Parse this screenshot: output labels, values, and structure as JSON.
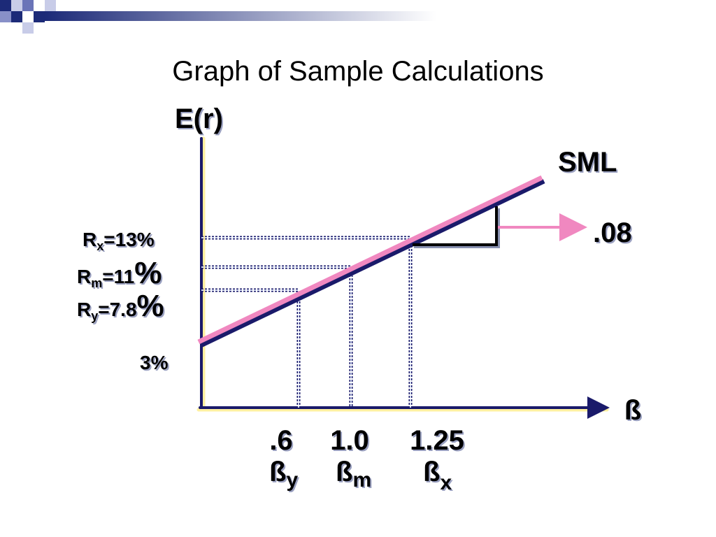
{
  "title": "Graph of Sample Calculations",
  "y_axis_label": "E(r)",
  "x_axis_label": "ß",
  "line_label": "SML",
  "slope_label": ".08",
  "return_labels": [
    {
      "symbol": "R",
      "subscript": "x",
      "value": "=13%"
    },
    {
      "symbol": "R",
      "subscript": "m",
      "value": "=11",
      "unit": "%"
    },
    {
      "symbol": "R",
      "subscript": "y",
      "value": "=7.8",
      "unit": "%"
    }
  ],
  "intercept_label": "3%",
  "beta_labels": [
    {
      "value": ".6",
      "symbol": "ß",
      "subscript": "y"
    },
    {
      "value": "1.0",
      "symbol": "ß",
      "subscript": "m"
    },
    {
      "value": "1.25",
      "symbol": "ß",
      "subscript": "x"
    }
  ]
}
